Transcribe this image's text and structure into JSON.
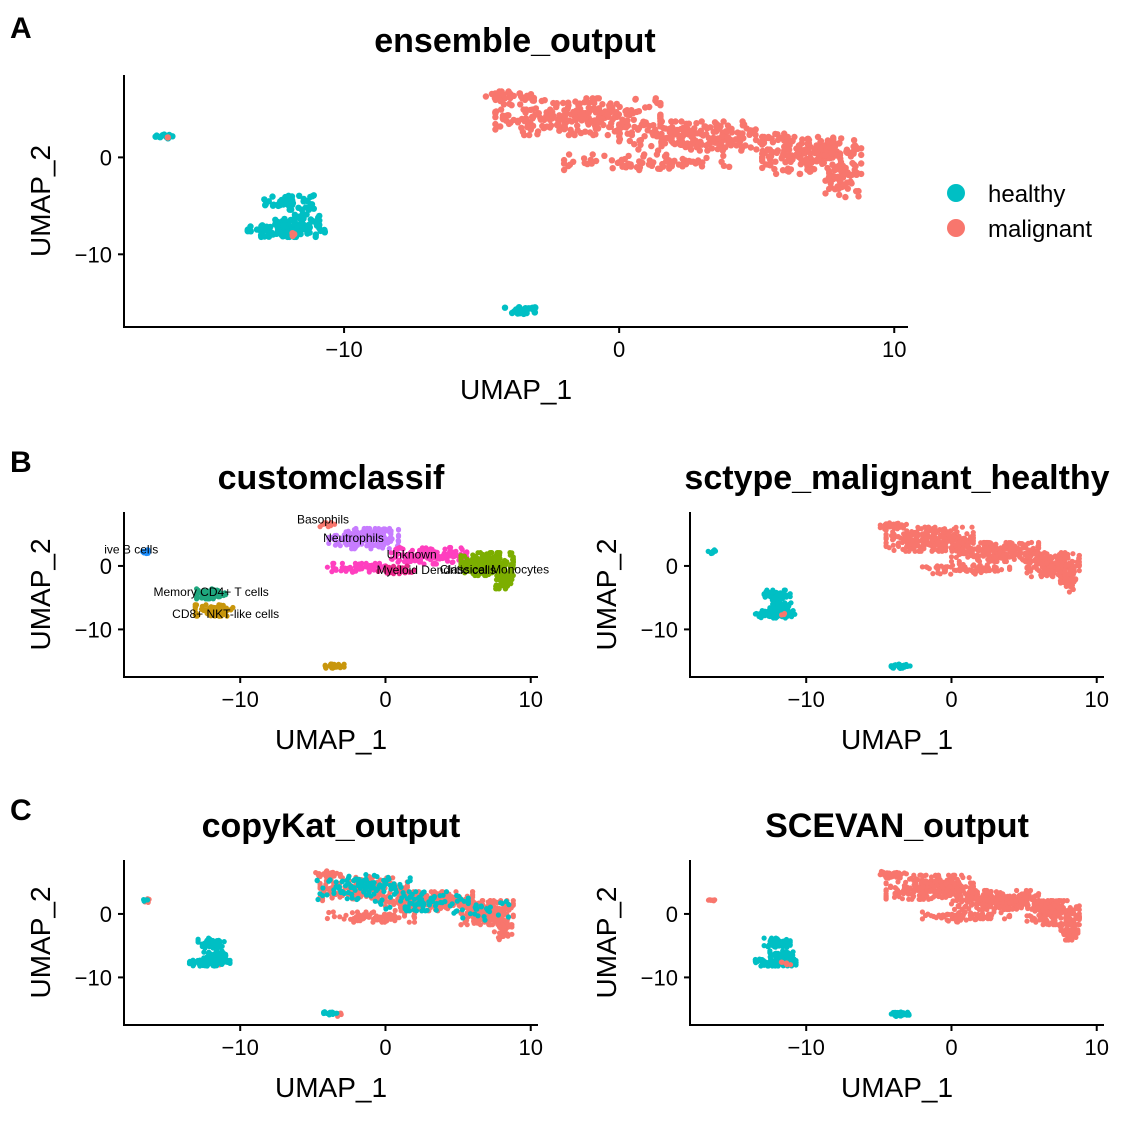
{
  "colors": {
    "healthy": "#00BFC4",
    "malignant": "#F8766D"
  },
  "panel_letters": [
    "A",
    "B",
    "C"
  ],
  "legend": {
    "items": [
      {
        "label": "healthy",
        "color": "#00BFC4"
      },
      {
        "label": "malignant",
        "color": "#F8766D"
      }
    ]
  },
  "chart_data": [
    {
      "type": "scatter",
      "title": "ensemble_output",
      "xlabel": "UMAP_1",
      "ylabel": "UMAP_2",
      "xticks": [
        "−10",
        "0",
        "10"
      ],
      "yticks": [
        "0",
        "−10"
      ],
      "xlim": [
        -18,
        10.5
      ],
      "ylim": [
        -17.5,
        8.5
      ],
      "grid": false,
      "legend_position": "right",
      "series": [
        {
          "name": "healthy",
          "color": "#00BFC4",
          "clusters": [
            {
              "cx": -16.5,
              "cy": 2.2,
              "rx": 0.35,
              "ry": 0.35,
              "n": 10
            },
            {
              "cx": -12,
              "cy": -4.6,
              "rx": 0.9,
              "ry": 0.8,
              "n": 60
            },
            {
              "cx": -11.7,
              "cy": -6.6,
              "rx": 0.8,
              "ry": 0.8,
              "n": 50
            },
            {
              "cx": -12.1,
              "cy": -7.6,
              "rx": 1.4,
              "ry": 0.6,
              "n": 80
            },
            {
              "cx": -3.5,
              "cy": -15.8,
              "rx": 0.65,
              "ry": 0.35,
              "n": 30
            }
          ]
        },
        {
          "name": "malignant",
          "color": "#F8766D",
          "clusters": [
            {
              "cx": -4,
              "cy": 6.3,
              "rx": 0.9,
              "ry": 0.5,
              "n": 30
            },
            {
              "cx": -1.5,
              "cy": 4.2,
              "rx": 3.0,
              "ry": 1.9,
              "n": 260
            },
            {
              "cx": 3,
              "cy": 2.2,
              "rx": 3.0,
              "ry": 1.5,
              "n": 220
            },
            {
              "cx": 7,
              "cy": 0.2,
              "rx": 1.8,
              "ry": 1.9,
              "n": 200
            },
            {
              "cx": 8.1,
              "cy": -2.5,
              "rx": 0.6,
              "ry": 1.6,
              "n": 50
            },
            {
              "cx": 1,
              "cy": -0.5,
              "rx": 3.0,
              "ry": 0.8,
              "n": 80
            },
            {
              "cx": -12,
              "cy": -7.8,
              "rx": 0.3,
              "ry": 0.3,
              "n": 3
            },
            {
              "cx": -16.4,
              "cy": 2.1,
              "rx": 0.2,
              "ry": 0.2,
              "n": 1
            }
          ]
        }
      ]
    },
    {
      "type": "scatter",
      "title": "customclassif",
      "xlabel": "UMAP_1",
      "ylabel": "UMAP_2",
      "xticks": [
        "−10",
        "0",
        "10"
      ],
      "yticks": [
        "0",
        "−10"
      ],
      "xlim": [
        -18,
        10.5
      ],
      "ylim": [
        -17.5,
        8.5
      ],
      "grid": false,
      "series": [
        {
          "name": "Naive B cells",
          "color": "#1E90FF",
          "clusters": [
            {
              "cx": -16.5,
              "cy": 2.2,
              "rx": 0.35,
              "ry": 0.35,
              "n": 12
            }
          ]
        },
        {
          "name": "Memory CD4+ T cells",
          "color": "#1FA77E",
          "clusters": [
            {
              "cx": -12,
              "cy": -4.4,
              "rx": 1.0,
              "ry": 0.8,
              "n": 60
            }
          ]
        },
        {
          "name": "CD8+ NKT-like cells",
          "color": "#C8960C",
          "clusters": [
            {
              "cx": -11.8,
              "cy": -7.0,
              "rx": 1.3,
              "ry": 0.9,
              "n": 90
            },
            {
              "cx": -3.5,
              "cy": -15.8,
              "rx": 0.65,
              "ry": 0.35,
              "n": 30
            }
          ]
        },
        {
          "name": "Basophils",
          "color": "#F8766D",
          "clusters": [
            {
              "cx": -4,
              "cy": 6.6,
              "rx": 0.5,
              "ry": 0.5,
              "n": 15
            }
          ]
        },
        {
          "name": "Neutrophils",
          "color": "#C77CFF",
          "clusters": [
            {
              "cx": -1.5,
              "cy": 4.3,
              "rx": 2.4,
              "ry": 1.6,
              "n": 200
            }
          ]
        },
        {
          "name": "Unknown",
          "color": "#FF3FBF",
          "clusters": [
            {
              "cx": 3,
              "cy": 1.6,
              "rx": 2.6,
              "ry": 1.3,
              "n": 160
            },
            {
              "cx": -2,
              "cy": -0.3,
              "rx": 2.0,
              "ry": 0.7,
              "n": 60
            }
          ]
        },
        {
          "name": "Myeloid Dendritic cells",
          "color": "#E7298A",
          "clusters": [
            {
              "cx": 1,
              "cy": -0.6,
              "rx": 1.5,
              "ry": 0.6,
              "n": 30
            }
          ]
        },
        {
          "name": "Classical Monocytes",
          "color": "#7CAE00",
          "clusters": [
            {
              "cx": 7,
              "cy": 0.3,
              "rx": 1.8,
              "ry": 1.8,
              "n": 220
            },
            {
              "cx": 8.1,
              "cy": -2.3,
              "rx": 0.6,
              "ry": 1.3,
              "n": 40
            }
          ]
        }
      ],
      "annotations": [
        {
          "text": "Basophils",
          "x": -4.3,
          "y": 6.7
        },
        {
          "text": "Neutrophils",
          "x": -2.2,
          "y": 3.8
        },
        {
          "text": "ive B cells",
          "x": -17.5,
          "y": 2.0
        },
        {
          "text": "Unknown",
          "x": 1.8,
          "y": 1.2
        },
        {
          "text": "Myeloid Dendritic cells",
          "x": 3.5,
          "y": -1.3
        },
        {
          "text": "Classical Monocytes",
          "x": 7.5,
          "y": -1.2
        },
        {
          "text": "Memory CD4+ T cells",
          "x": -12.0,
          "y": -4.7
        },
        {
          "text": "CD8+ NKT-like cells",
          "x": -11.0,
          "y": -8.2
        }
      ]
    },
    {
      "type": "scatter",
      "title": "sctype_malignant_healthy",
      "xlabel": "UMAP_1",
      "ylabel": "UMAP_2",
      "xticks": [
        "−10",
        "0",
        "10"
      ],
      "yticks": [
        "0",
        "−10"
      ],
      "xlim": [
        -18,
        10.5
      ],
      "ylim": [
        -17.5,
        8.5
      ],
      "grid": false,
      "series": [
        {
          "name": "healthy",
          "color": "#00BFC4",
          "clusters": [
            {
              "cx": -16.5,
              "cy": 2.2,
              "rx": 0.35,
              "ry": 0.35,
              "n": 10
            },
            {
              "cx": -12,
              "cy": -4.6,
              "rx": 0.9,
              "ry": 0.8,
              "n": 60
            },
            {
              "cx": -11.7,
              "cy": -6.6,
              "rx": 0.8,
              "ry": 0.8,
              "n": 50
            },
            {
              "cx": -12.1,
              "cy": -7.6,
              "rx": 1.4,
              "ry": 0.6,
              "n": 80
            },
            {
              "cx": -3.5,
              "cy": -15.8,
              "rx": 0.65,
              "ry": 0.35,
              "n": 30
            }
          ]
        },
        {
          "name": "malignant",
          "color": "#F8766D",
          "clusters": [
            {
              "cx": -4,
              "cy": 6.3,
              "rx": 0.9,
              "ry": 0.5,
              "n": 30
            },
            {
              "cx": -1.5,
              "cy": 4.2,
              "rx": 3.0,
              "ry": 1.9,
              "n": 260
            },
            {
              "cx": 3,
              "cy": 2.2,
              "rx": 3.0,
              "ry": 1.5,
              "n": 220
            },
            {
              "cx": 7,
              "cy": 0.2,
              "rx": 1.8,
              "ry": 1.9,
              "n": 200
            },
            {
              "cx": 8.1,
              "cy": -2.5,
              "rx": 0.6,
              "ry": 1.6,
              "n": 50
            },
            {
              "cx": 1,
              "cy": -0.5,
              "rx": 3.0,
              "ry": 0.8,
              "n": 80
            },
            {
              "cx": -11.6,
              "cy": -7.8,
              "rx": 0.3,
              "ry": 0.3,
              "n": 3
            }
          ]
        }
      ]
    },
    {
      "type": "scatter",
      "title": "copyKat_output",
      "xlabel": "UMAP_1",
      "ylabel": "UMAP_2",
      "xticks": [
        "−10",
        "0",
        "10"
      ],
      "yticks": [
        "0",
        "−10"
      ],
      "xlim": [
        -18,
        10.5
      ],
      "ylim": [
        -17.5,
        8.5
      ],
      "grid": false,
      "series": [
        {
          "name": "malignant",
          "color": "#F8766D",
          "clusters": [
            {
              "cx": -4,
              "cy": 6.3,
              "rx": 0.9,
              "ry": 0.5,
              "n": 30
            },
            {
              "cx": -1.5,
              "cy": 4.0,
              "rx": 3.0,
              "ry": 1.9,
              "n": 180
            },
            {
              "cx": 3,
              "cy": 2.0,
              "rx": 3.0,
              "ry": 1.5,
              "n": 220
            },
            {
              "cx": 7,
              "cy": 0.2,
              "rx": 1.8,
              "ry": 1.9,
              "n": 200
            },
            {
              "cx": 8.1,
              "cy": -2.5,
              "rx": 0.6,
              "ry": 1.6,
              "n": 50
            },
            {
              "cx": -1,
              "cy": -0.5,
              "rx": 3.0,
              "ry": 0.8,
              "n": 80
            },
            {
              "cx": -16.5,
              "cy": 2.1,
              "rx": 0.3,
              "ry": 0.3,
              "n": 6
            },
            {
              "cx": -11.4,
              "cy": -7.8,
              "rx": 0.4,
              "ry": 0.3,
              "n": 4
            },
            {
              "cx": -3.2,
              "cy": -15.9,
              "rx": 0.4,
              "ry": 0.3,
              "n": 6
            }
          ]
        },
        {
          "name": "healthy",
          "color": "#00BFC4",
          "clusters": [
            {
              "cx": -16.6,
              "cy": 2.2,
              "rx": 0.25,
              "ry": 0.25,
              "n": 5
            },
            {
              "cx": -12,
              "cy": -4.6,
              "rx": 0.9,
              "ry": 0.8,
              "n": 60
            },
            {
              "cx": -11.7,
              "cy": -6.6,
              "rx": 0.8,
              "ry": 0.8,
              "n": 50
            },
            {
              "cx": -12.1,
              "cy": -7.6,
              "rx": 1.4,
              "ry": 0.6,
              "n": 80
            },
            {
              "cx": -3.8,
              "cy": -15.7,
              "rx": 0.45,
              "ry": 0.3,
              "n": 20
            },
            {
              "cx": -1.5,
              "cy": 4.2,
              "rx": 3.2,
              "ry": 2.0,
              "n": 110
            },
            {
              "cx": 2.5,
              "cy": 2.0,
              "rx": 3.2,
              "ry": 1.5,
              "n": 70
            },
            {
              "cx": 6.5,
              "cy": 0.5,
              "rx": 2.0,
              "ry": 1.5,
              "n": 30
            }
          ]
        }
      ]
    },
    {
      "type": "scatter",
      "title": "SCEVAN_output",
      "xlabel": "UMAP_1",
      "ylabel": "UMAP_2",
      "xticks": [
        "−10",
        "0",
        "10"
      ],
      "yticks": [
        "0",
        "−10"
      ],
      "xlim": [
        -18,
        10.5
      ],
      "ylim": [
        -17.5,
        8.5
      ],
      "grid": false,
      "series": [
        {
          "name": "healthy",
          "color": "#00BFC4",
          "clusters": [
            {
              "cx": -12,
              "cy": -4.6,
              "rx": 0.9,
              "ry": 0.8,
              "n": 60
            },
            {
              "cx": -11.7,
              "cy": -6.6,
              "rx": 0.8,
              "ry": 0.8,
              "n": 50
            },
            {
              "cx": -12.1,
              "cy": -7.6,
              "rx": 1.4,
              "ry": 0.6,
              "n": 80
            },
            {
              "cx": -3.5,
              "cy": -15.8,
              "rx": 0.65,
              "ry": 0.35,
              "n": 30
            }
          ]
        },
        {
          "name": "malignant",
          "color": "#F8766D",
          "clusters": [
            {
              "cx": -16.5,
              "cy": 2.2,
              "rx": 0.3,
              "ry": 0.3,
              "n": 8
            },
            {
              "cx": -4,
              "cy": 6.3,
              "rx": 0.9,
              "ry": 0.5,
              "n": 30
            },
            {
              "cx": -1.5,
              "cy": 4.2,
              "rx": 3.0,
              "ry": 1.9,
              "n": 260
            },
            {
              "cx": 3,
              "cy": 2.2,
              "rx": 3.0,
              "ry": 1.5,
              "n": 220
            },
            {
              "cx": 7,
              "cy": 0.2,
              "rx": 1.8,
              "ry": 1.9,
              "n": 200
            },
            {
              "cx": 8.1,
              "cy": -2.5,
              "rx": 0.6,
              "ry": 1.6,
              "n": 50
            },
            {
              "cx": 1,
              "cy": -0.5,
              "rx": 3.0,
              "ry": 0.8,
              "n": 80
            },
            {
              "cx": -11.5,
              "cy": -7.8,
              "rx": 0.5,
              "ry": 0.3,
              "n": 6
            }
          ]
        }
      ]
    }
  ]
}
